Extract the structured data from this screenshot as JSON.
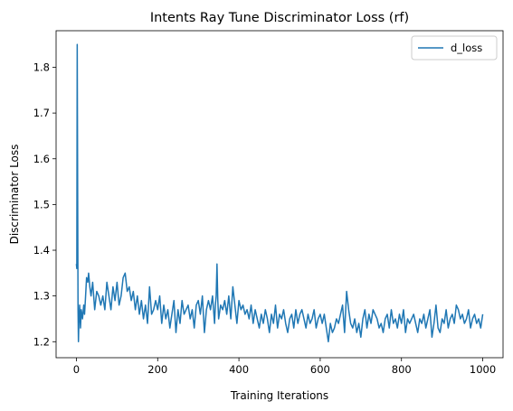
{
  "chart_data": {
    "type": "line",
    "title": "Intents Ray Tune Discriminator Loss (rf)",
    "xlabel": "Training Iterations",
    "ylabel": "Discriminator Loss",
    "xlim": [
      -50,
      1050
    ],
    "ylim": [
      1.165,
      1.88
    ],
    "x_ticks": [
      0,
      200,
      400,
      600,
      800,
      1000
    ],
    "y_ticks": [
      1.2,
      1.3,
      1.4,
      1.5,
      1.6,
      1.7,
      1.8
    ],
    "grid": false,
    "legend_position": "top-right",
    "series": [
      {
        "name": "d_loss",
        "color": "#1f77b4",
        "x": [
          0,
          1,
          2,
          3,
          4,
          5,
          6,
          8,
          10,
          12,
          15,
          18,
          20,
          22,
          25,
          28,
          30,
          33,
          36,
          40,
          45,
          50,
          55,
          60,
          65,
          70,
          75,
          80,
          85,
          90,
          95,
          100,
          105,
          110,
          115,
          120,
          125,
          130,
          135,
          140,
          145,
          150,
          155,
          160,
          165,
          170,
          175,
          180,
          185,
          190,
          195,
          200,
          205,
          210,
          215,
          220,
          225,
          230,
          235,
          240,
          245,
          250,
          255,
          260,
          265,
          270,
          275,
          280,
          285,
          290,
          295,
          300,
          305,
          310,
          315,
          320,
          325,
          330,
          335,
          340,
          342,
          344,
          346,
          348,
          350,
          355,
          360,
          365,
          370,
          375,
          380,
          385,
          390,
          395,
          400,
          405,
          410,
          415,
          420,
          425,
          430,
          435,
          440,
          445,
          450,
          455,
          460,
          465,
          470,
          475,
          480,
          485,
          490,
          495,
          500,
          505,
          510,
          515,
          520,
          525,
          530,
          535,
          540,
          545,
          550,
          555,
          560,
          565,
          570,
          575,
          580,
          585,
          590,
          595,
          600,
          605,
          610,
          615,
          620,
          625,
          630,
          635,
          640,
          645,
          650,
          655,
          660,
          665,
          670,
          675,
          680,
          685,
          690,
          695,
          700,
          705,
          710,
          715,
          720,
          725,
          730,
          735,
          740,
          745,
          750,
          755,
          760,
          765,
          770,
          775,
          780,
          785,
          790,
          795,
          800,
          805,
          810,
          815,
          820,
          825,
          830,
          835,
          840,
          845,
          850,
          855,
          860,
          865,
          870,
          875,
          880,
          885,
          890,
          895,
          900,
          905,
          910,
          915,
          920,
          925,
          930,
          935,
          940,
          945,
          950,
          955,
          960,
          965,
          970,
          975,
          980,
          985,
          990,
          995,
          1000
        ],
        "values": [
          1.37,
          1.36,
          1.85,
          1.55,
          1.27,
          1.2,
          1.24,
          1.28,
          1.23,
          1.27,
          1.25,
          1.28,
          1.26,
          1.29,
          1.34,
          1.33,
          1.35,
          1.32,
          1.3,
          1.33,
          1.27,
          1.31,
          1.3,
          1.28,
          1.3,
          1.27,
          1.33,
          1.3,
          1.27,
          1.32,
          1.29,
          1.33,
          1.28,
          1.3,
          1.34,
          1.35,
          1.31,
          1.32,
          1.29,
          1.31,
          1.27,
          1.3,
          1.26,
          1.29,
          1.25,
          1.28,
          1.24,
          1.32,
          1.26,
          1.27,
          1.29,
          1.27,
          1.3,
          1.24,
          1.28,
          1.25,
          1.27,
          1.23,
          1.26,
          1.29,
          1.22,
          1.27,
          1.24,
          1.29,
          1.26,
          1.27,
          1.28,
          1.25,
          1.27,
          1.23,
          1.28,
          1.29,
          1.26,
          1.3,
          1.22,
          1.27,
          1.29,
          1.27,
          1.3,
          1.24,
          1.28,
          1.3,
          1.37,
          1.29,
          1.25,
          1.28,
          1.27,
          1.29,
          1.26,
          1.3,
          1.25,
          1.32,
          1.28,
          1.24,
          1.29,
          1.27,
          1.28,
          1.26,
          1.27,
          1.25,
          1.28,
          1.24,
          1.27,
          1.25,
          1.23,
          1.26,
          1.24,
          1.27,
          1.25,
          1.22,
          1.26,
          1.24,
          1.28,
          1.23,
          1.26,
          1.25,
          1.27,
          1.24,
          1.22,
          1.25,
          1.26,
          1.23,
          1.27,
          1.24,
          1.26,
          1.27,
          1.25,
          1.23,
          1.26,
          1.24,
          1.25,
          1.27,
          1.23,
          1.25,
          1.26,
          1.24,
          1.26,
          1.23,
          1.2,
          1.24,
          1.22,
          1.23,
          1.25,
          1.24,
          1.26,
          1.28,
          1.22,
          1.31,
          1.27,
          1.24,
          1.23,
          1.25,
          1.22,
          1.24,
          1.21,
          1.25,
          1.27,
          1.23,
          1.26,
          1.24,
          1.27,
          1.26,
          1.25,
          1.23,
          1.24,
          1.22,
          1.25,
          1.26,
          1.23,
          1.27,
          1.24,
          1.25,
          1.23,
          1.26,
          1.24,
          1.27,
          1.22,
          1.25,
          1.24,
          1.25,
          1.26,
          1.24,
          1.22,
          1.25,
          1.24,
          1.26,
          1.23,
          1.25,
          1.27,
          1.21,
          1.24,
          1.28,
          1.23,
          1.22,
          1.25,
          1.24,
          1.27,
          1.23,
          1.25,
          1.26,
          1.24,
          1.28,
          1.27,
          1.25,
          1.26,
          1.24,
          1.25,
          1.27,
          1.23,
          1.25,
          1.26,
          1.24,
          1.25,
          1.23,
          1.26
        ]
      }
    ]
  }
}
